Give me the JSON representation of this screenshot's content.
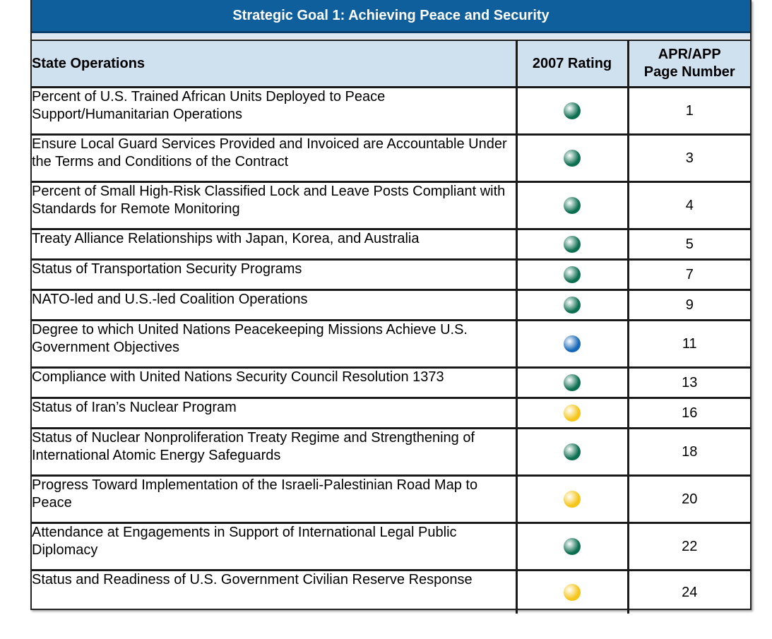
{
  "title": "Strategic Goal 1: Achieving Peace and Security",
  "headers": {
    "operations": "State Operations",
    "rating": "2007 Rating",
    "page_line1": "APR/APP",
    "page_line2": "Page Number"
  },
  "rating_colors": {
    "green": "#0b6e4f",
    "blue": "#1466b8",
    "yellow": "#f5c518"
  },
  "rows": [
    {
      "operation": "Percent of U.S. Trained African Units Deployed to Peace Support/Humanitarian Operations",
      "rating": "green",
      "page": "1"
    },
    {
      "operation": "Ensure Local Guard Services Provided and Invoiced are Accountable Under the Terms and Conditions of the Contract",
      "rating": "green",
      "page": "3"
    },
    {
      "operation": "Percent of Small High-Risk Classified Lock and Leave Posts Compliant with Standards for Remote Monitoring",
      "rating": "green",
      "page": "4"
    },
    {
      "operation": "Treaty Alliance Relationships with Japan, Korea, and Australia",
      "rating": "green",
      "page": "5"
    },
    {
      "operation": "Status of Transportation Security Programs",
      "rating": "green",
      "page": "7"
    },
    {
      "operation": "NATO-led and U.S.-led Coalition Operations",
      "rating": "green",
      "page": "9"
    },
    {
      "operation": "Degree to which United Nations Peacekeeping Missions Achieve U.S. Government Objectives",
      "rating": "blue",
      "page": "11"
    },
    {
      "operation": "Compliance with United Nations Security Council Resolution 1373",
      "rating": "green",
      "page": "13"
    },
    {
      "operation": "Status of Iran’s Nuclear Program",
      "rating": "yellow",
      "page": "16"
    },
    {
      "operation": "Status of Nuclear Nonproliferation Treaty Regime and Strengthening of International Atomic Energy Safeguards",
      "rating": "green",
      "page": "18"
    },
    {
      "operation": "Progress Toward Implementation of the Israeli-Palestinian Road Map to Peace",
      "rating": "yellow",
      "page": "20"
    },
    {
      "operation": "Attendance at Engagements in Support of International Legal Public Diplomacy",
      "rating": "green",
      "page": "22"
    },
    {
      "operation": "Status and Readiness of U.S. Government Civilian Reserve Response",
      "rating": "yellow",
      "page": "24"
    }
  ]
}
